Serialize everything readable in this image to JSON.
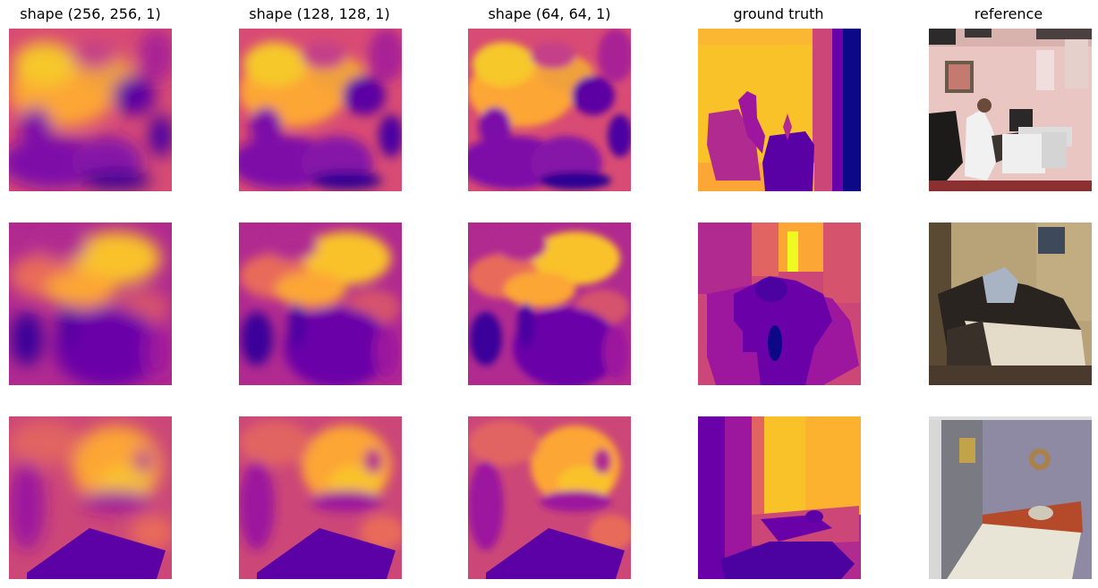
{
  "columns": [
    {
      "title": "shape (256, 256, 1)"
    },
    {
      "title": "shape (128, 128, 1)"
    },
    {
      "title": "shape (64, 64, 1)"
    },
    {
      "title": "ground truth"
    },
    {
      "title": "reference"
    }
  ],
  "colormap": [
    "#0d0887",
    "#6a00a8",
    "#b12a90",
    "#e16462",
    "#fca636",
    "#f0f921"
  ],
  "rows": [
    {
      "description_icon": "office-scene"
    },
    {
      "description_icon": "bedroom-scene"
    },
    {
      "description_icon": "living-room-scene"
    }
  ]
}
